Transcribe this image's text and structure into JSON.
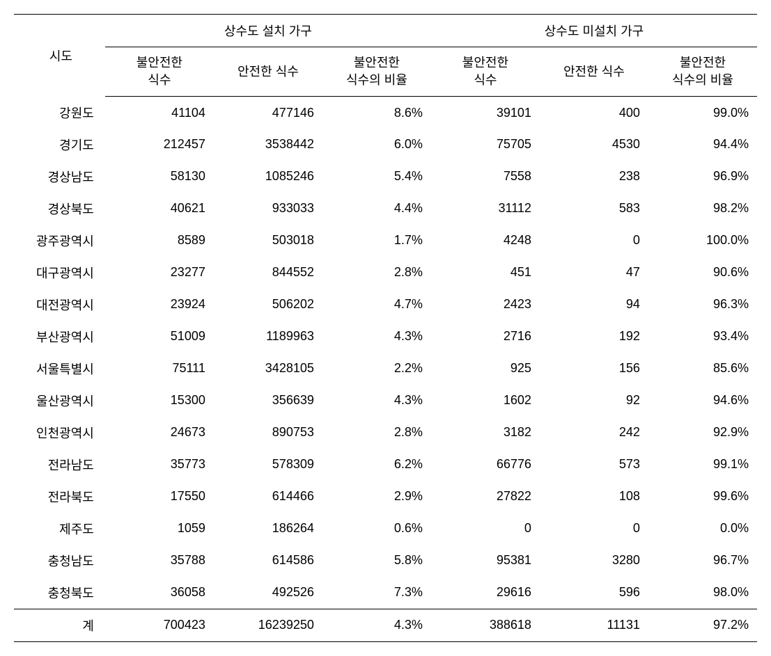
{
  "table": {
    "headers": {
      "region": "시도",
      "group1": "상수도 설치 가구",
      "group2": "상수도 미설치 가구",
      "sub1": "불안전한\n식수",
      "sub2": "안전한 식수",
      "sub3": "불안전한\n식수의 비율",
      "sub4": "불안전한\n식수",
      "sub5": "안전한 식수",
      "sub6": "불안전한\n식수의 비율"
    },
    "rows": [
      {
        "region": "강원도",
        "c1": "41104",
        "c2": "477146",
        "c3": "8.6%",
        "c4": "39101",
        "c5": "400",
        "c6": "99.0%"
      },
      {
        "region": "경기도",
        "c1": "212457",
        "c2": "3538442",
        "c3": "6.0%",
        "c4": "75705",
        "c5": "4530",
        "c6": "94.4%"
      },
      {
        "region": "경상남도",
        "c1": "58130",
        "c2": "1085246",
        "c3": "5.4%",
        "c4": "7558",
        "c5": "238",
        "c6": "96.9%"
      },
      {
        "region": "경상북도",
        "c1": "40621",
        "c2": "933033",
        "c3": "4.4%",
        "c4": "31112",
        "c5": "583",
        "c6": "98.2%"
      },
      {
        "region": "광주광역시",
        "c1": "8589",
        "c2": "503018",
        "c3": "1.7%",
        "c4": "4248",
        "c5": "0",
        "c6": "100.0%"
      },
      {
        "region": "대구광역시",
        "c1": "23277",
        "c2": "844552",
        "c3": "2.8%",
        "c4": "451",
        "c5": "47",
        "c6": "90.6%"
      },
      {
        "region": "대전광역시",
        "c1": "23924",
        "c2": "506202",
        "c3": "4.7%",
        "c4": "2423",
        "c5": "94",
        "c6": "96.3%"
      },
      {
        "region": "부산광역시",
        "c1": "51009",
        "c2": "1189963",
        "c3": "4.3%",
        "c4": "2716",
        "c5": "192",
        "c6": "93.4%"
      },
      {
        "region": "서울특별시",
        "c1": "75111",
        "c2": "3428105",
        "c3": "2.2%",
        "c4": "925",
        "c5": "156",
        "c6": "85.6%"
      },
      {
        "region": "울산광역시",
        "c1": "15300",
        "c2": "356639",
        "c3": "4.3%",
        "c4": "1602",
        "c5": "92",
        "c6": "94.6%"
      },
      {
        "region": "인천광역시",
        "c1": "24673",
        "c2": "890753",
        "c3": "2.8%",
        "c4": "3182",
        "c5": "242",
        "c6": "92.9%"
      },
      {
        "region": "전라남도",
        "c1": "35773",
        "c2": "578309",
        "c3": "6.2%",
        "c4": "66776",
        "c5": "573",
        "c6": "99.1%"
      },
      {
        "region": "전라북도",
        "c1": "17550",
        "c2": "614466",
        "c3": "2.9%",
        "c4": "27822",
        "c5": "108",
        "c6": "99.6%"
      },
      {
        "region": "제주도",
        "c1": "1059",
        "c2": "186264",
        "c3": "0.6%",
        "c4": "0",
        "c5": "0",
        "c6": "0.0%"
      },
      {
        "region": "충청남도",
        "c1": "35788",
        "c2": "614586",
        "c3": "5.8%",
        "c4": "95381",
        "c5": "3280",
        "c6": "96.7%"
      },
      {
        "region": "충청북도",
        "c1": "36058",
        "c2": "492526",
        "c3": "7.3%",
        "c4": "29616",
        "c5": "596",
        "c6": "98.0%"
      }
    ],
    "total": {
      "region": "계",
      "c1": "700423",
      "c2": "16239250",
      "c3": "4.3%",
      "c4": "388618",
      "c5": "11131",
      "c6": "97.2%"
    },
    "styling": {
      "border_color": "#000000",
      "background_color": "#ffffff",
      "text_color": "#000000",
      "font_size": 18,
      "font_family": "Malgun Gothic"
    }
  }
}
